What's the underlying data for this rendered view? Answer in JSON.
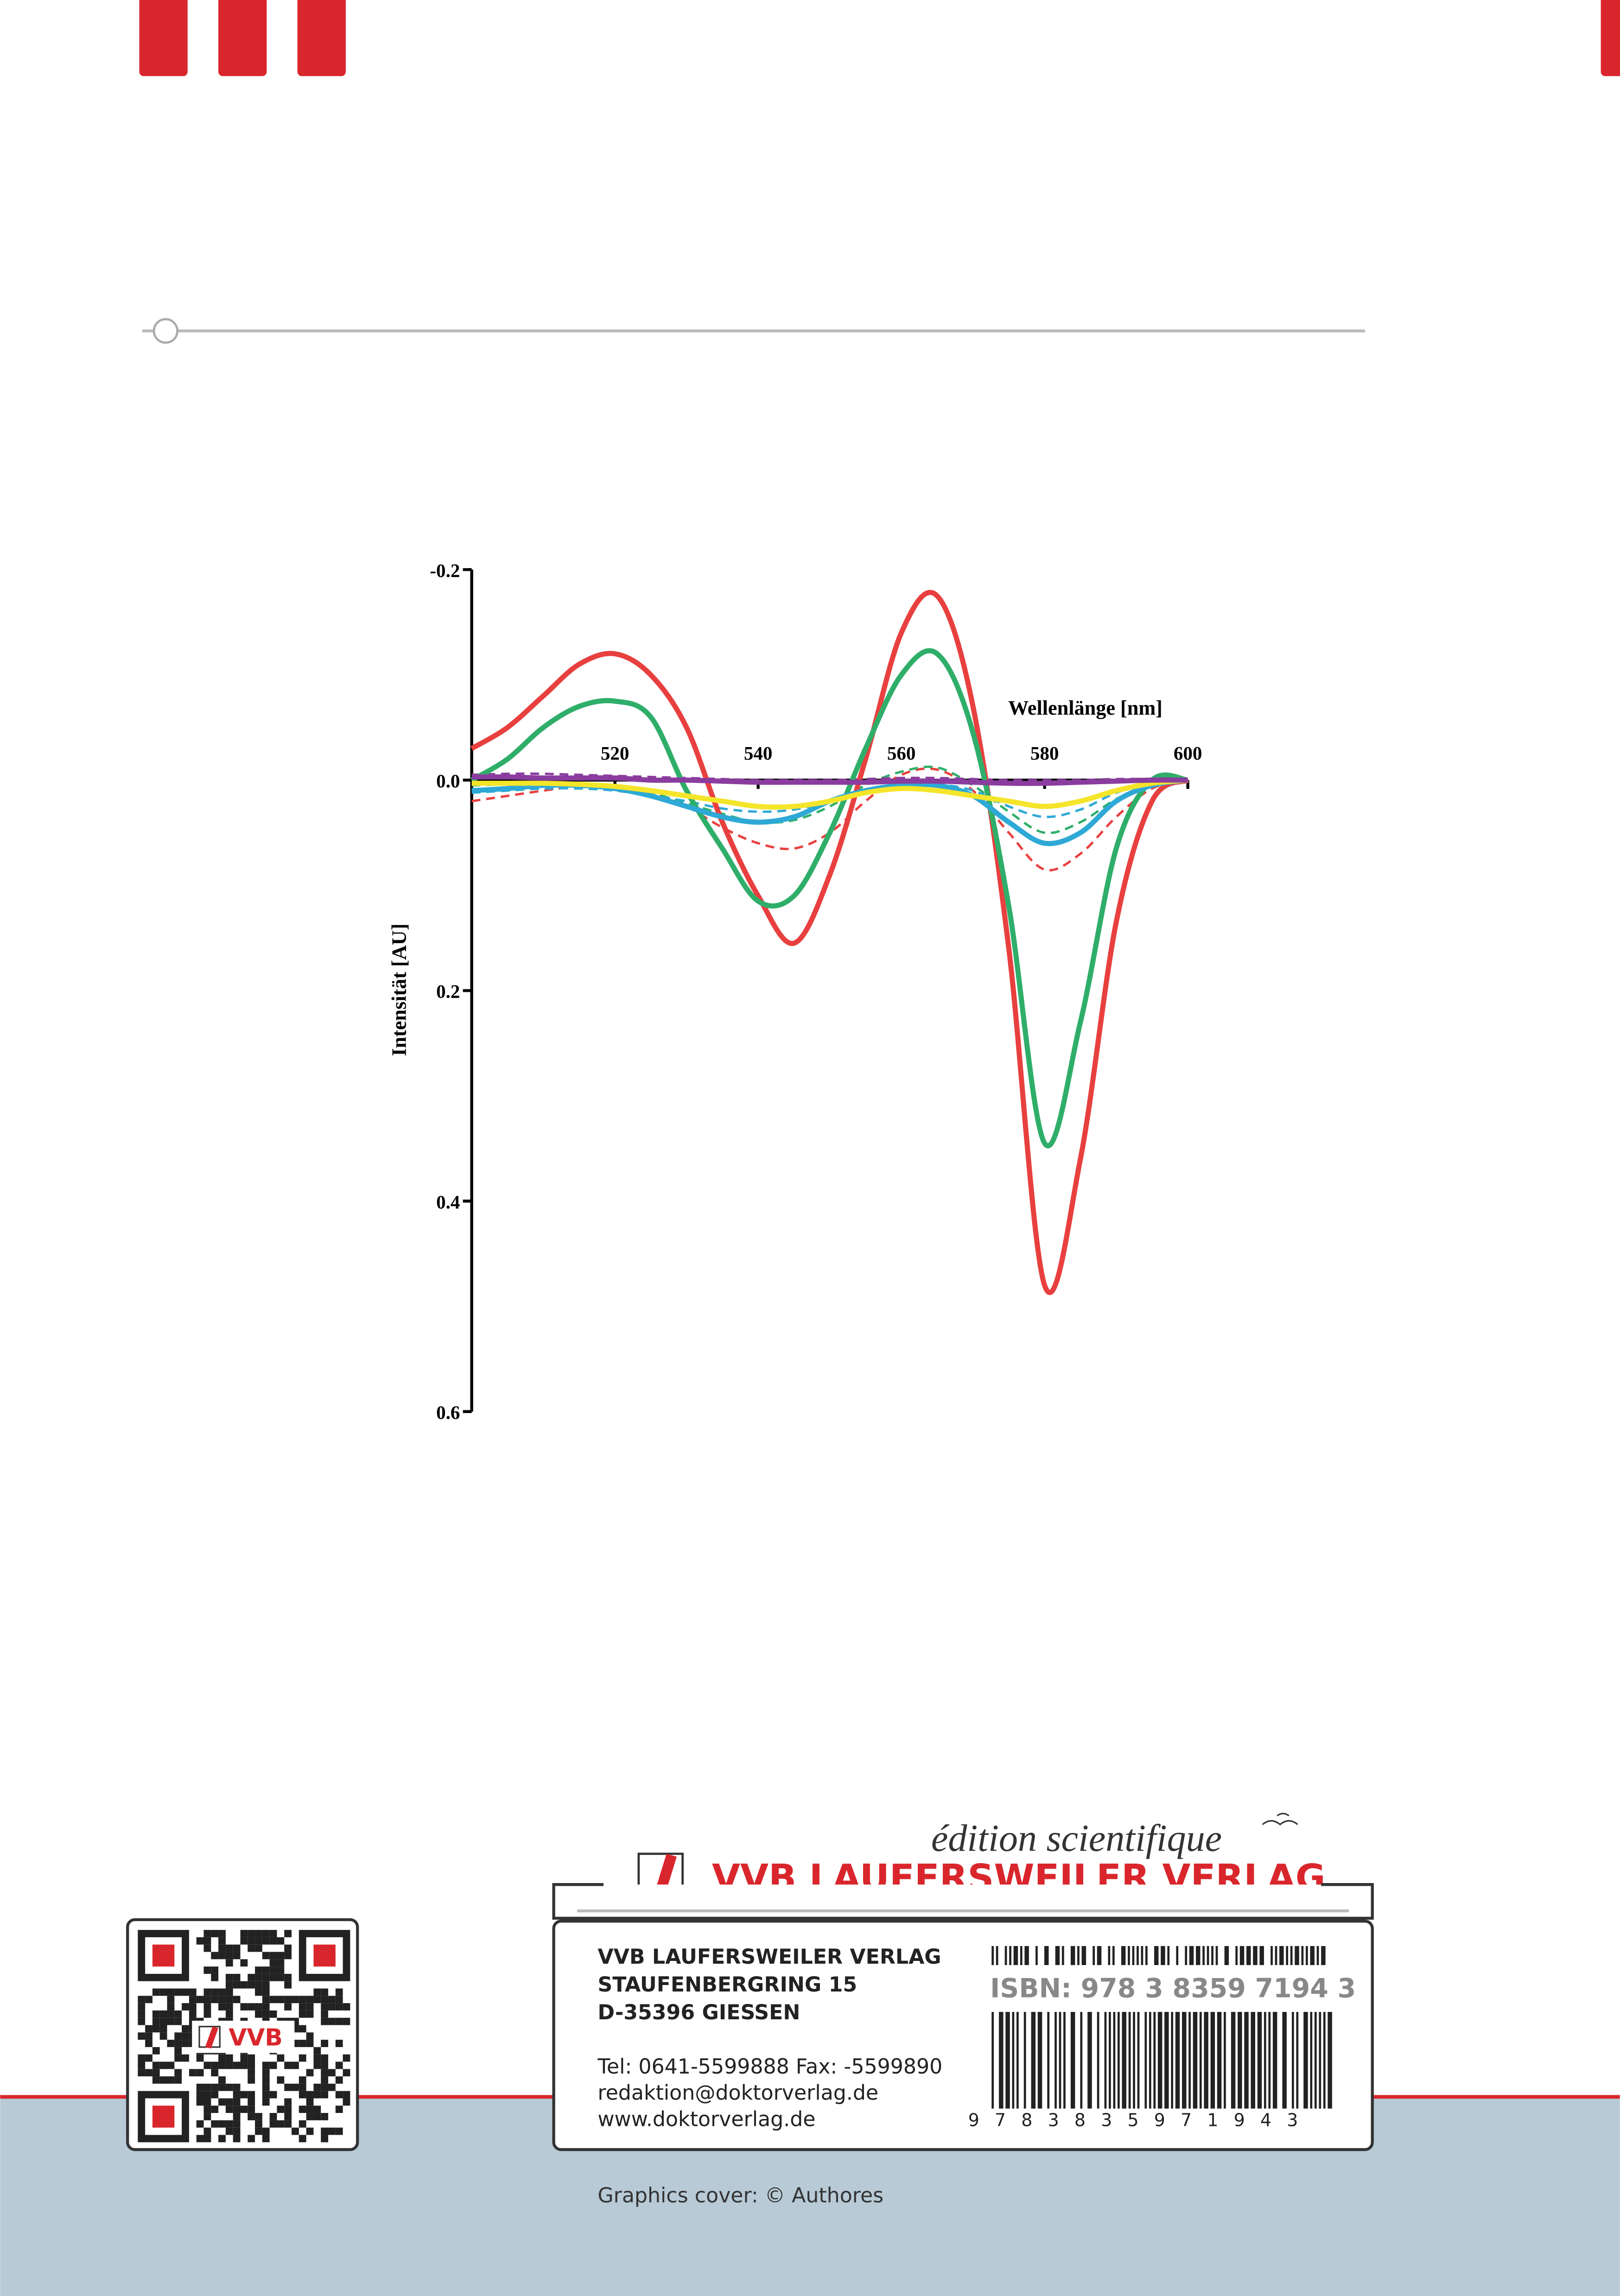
{
  "chart_data": {
    "type": "line",
    "x_label": "Wellenlänge [nm]",
    "y_label": "Intensität [AU]",
    "x": [
      500,
      505,
      510,
      515,
      520,
      525,
      530,
      535,
      540,
      545,
      550,
      555,
      560,
      565,
      570,
      575,
      580,
      585,
      590,
      595,
      600
    ],
    "xlim": [
      500,
      600
    ],
    "xticks": [
      520,
      540,
      560,
      580,
      600
    ],
    "ylim": [
      -0.2,
      0.6
    ],
    "yticks": [
      -0.2,
      {
        "value": 0,
        "label": "0.0"
      },
      0.2,
      0.4,
      0.6
    ],
    "series": [
      {
        "color": "#e8403f",
        "dashed": false,
        "values": [
          -0.03,
          -0.05,
          -0.08,
          -0.11,
          -0.12,
          -0.1,
          -0.05,
          0.04,
          0.11,
          0.155,
          0.09,
          -0.02,
          -0.14,
          -0.175,
          -0.07,
          0.16,
          0.48,
          0.36,
          0.135,
          0.02,
          0
        ]
      },
      {
        "color": "#2fae6a",
        "dashed": false,
        "values": [
          0,
          -0.02,
          -0.05,
          -0.07,
          -0.075,
          -0.06,
          0.01,
          0.065,
          0.115,
          0.11,
          0.05,
          -0.03,
          -0.1,
          -0.12,
          -0.045,
          0.12,
          0.345,
          0.23,
          0.065,
          0,
          0
        ]
      },
      {
        "color": "#2ea9d6",
        "dashed": false,
        "values": [
          0.01,
          0.008,
          0.005,
          0.005,
          0.008,
          0.015,
          0.025,
          0.035,
          0.04,
          0.035,
          0.02,
          0.01,
          0.005,
          0.005,
          0.015,
          0.04,
          0.06,
          0.05,
          0.02,
          0.005,
          0
        ]
      },
      {
        "color": "#f5e52a",
        "dashed": false,
        "values": [
          0.003,
          0.003,
          0.003,
          0.004,
          0.006,
          0.01,
          0.015,
          0.02,
          0.025,
          0.025,
          0.02,
          0.012,
          0.008,
          0.01,
          0.015,
          0.02,
          0.025,
          0.02,
          0.01,
          0.003,
          0
        ]
      },
      {
        "color": "#8a3d9e",
        "dashed": false,
        "values": [
          -0.003,
          -0.003,
          -0.002,
          -0.002,
          -0.002,
          0,
          0,
          0.001,
          0.002,
          0.002,
          0.002,
          0.002,
          0.001,
          0.001,
          0.002,
          0.003,
          0.003,
          0.002,
          0.001,
          0,
          0
        ]
      },
      {
        "color": "#e8403f",
        "dashed": true,
        "values": [
          0.02,
          0.015,
          0.01,
          0.006,
          0.006,
          0.012,
          0.025,
          0.045,
          0.06,
          0.065,
          0.05,
          0.02,
          -0.005,
          -0.01,
          0.01,
          0.05,
          0.085,
          0.07,
          0.035,
          0.008,
          0
        ]
      },
      {
        "color": "#2fae6a",
        "dashed": true,
        "values": [
          0.005,
          0.004,
          0.003,
          0.003,
          0.005,
          0.012,
          0.022,
          0.032,
          0.04,
          0.038,
          0.025,
          0.005,
          -0.008,
          -0.012,
          0.005,
          0.03,
          0.05,
          0.04,
          0.018,
          0.004,
          0
        ]
      },
      {
        "color": "#2ea9d6",
        "dashed": true,
        "values": [
          0.012,
          0.01,
          0.008,
          0.008,
          0.01,
          0.015,
          0.02,
          0.027,
          0.03,
          0.028,
          0.02,
          0.01,
          0.005,
          0.004,
          0.01,
          0.025,
          0.035,
          0.028,
          0.012,
          0.003,
          0
        ]
      },
      {
        "color": "#8a3d9e",
        "dashed": true,
        "values": [
          -0.005,
          -0.006,
          -0.006,
          -0.005,
          -0.004,
          -0.003,
          -0.002,
          -0.001,
          0,
          0,
          0,
          -0.001,
          -0.002,
          -0.002,
          -0.001,
          0,
          0,
          0,
          -0.001,
          -0.001,
          0
        ]
      }
    ]
  },
  "publisher": {
    "tagline": "édition scientifique",
    "logo": "VVB LAUFERSWEILER VERLAG",
    "qr_label": "VVB",
    "address": [
      "VVB LAUFERSWEILER VERLAG",
      "STAUFENBERGRING 15",
      "D-35396 GIESSEN"
    ],
    "contact": [
      "Tel: 0641-5599888 Fax: -5599890",
      "redaktion@doktorverlag.de",
      "www.doktorverlag.de"
    ],
    "isbn": "ISBN: 978 3 8359 7194 3",
    "barcode_digits": "9783835971943",
    "credit": "Graphics cover: © Authores"
  }
}
